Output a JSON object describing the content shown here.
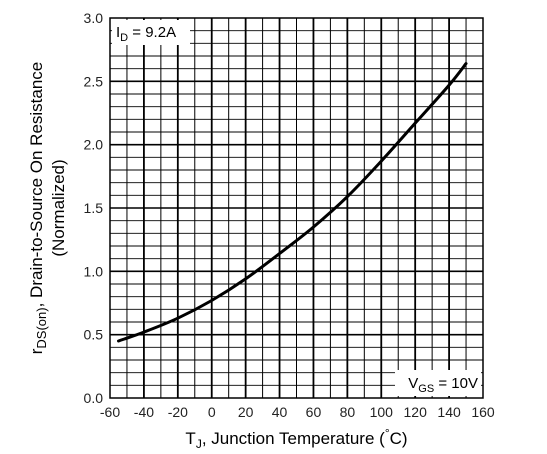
{
  "chart_data": {
    "type": "line",
    "title": "",
    "xlabel": "T",
    "xlabel_sub": "J",
    "xlabel_rest": ", Junction Temperature (",
    "xlabel_deg": "°",
    "xlabel_unit": "C)",
    "ylabel_main": "r",
    "ylabel_sub": "DS(on)",
    "ylabel_rest": ", Drain-to-Source On Resistance",
    "ylabel_line2": "(Normalized)",
    "xlim": [
      -60,
      160
    ],
    "ylim": [
      0.0,
      3.0
    ],
    "xticks": [
      -60,
      -40,
      -20,
      0,
      20,
      40,
      60,
      80,
      100,
      120,
      140,
      160
    ],
    "yticks": [
      "0.0",
      "0.5",
      "1.0",
      "1.5",
      "2.0",
      "2.5",
      "3.0"
    ],
    "grid": true,
    "legend": "none",
    "annotations": {
      "id": {
        "main": "I",
        "sub": "D",
        "rest": " = 9.2A",
        "position": "top-left"
      },
      "vgs": {
        "main": "V",
        "sub": "GS",
        "rest": " = 10V",
        "position": "bottom-right"
      }
    },
    "series": [
      {
        "x": [
          -55,
          -40,
          -20,
          0,
          20,
          40,
          60,
          80,
          100,
          120,
          140,
          150
        ],
        "y": [
          0.45,
          0.52,
          0.63,
          0.77,
          0.94,
          1.14,
          1.35,
          1.59,
          1.87,
          2.17,
          2.47,
          2.64
        ]
      }
    ],
    "line_color": "#000000"
  }
}
